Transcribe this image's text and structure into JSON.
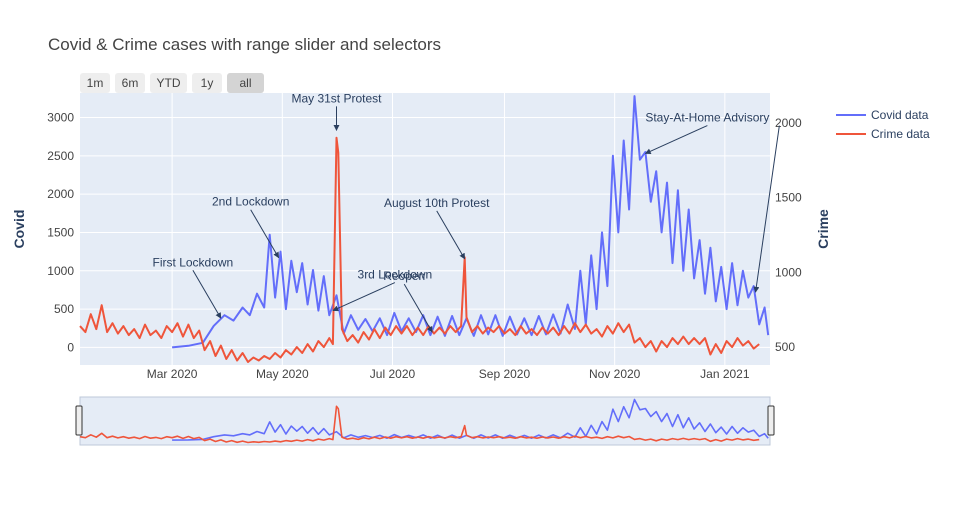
{
  "chart_data": {
    "type": "line",
    "title": "Covid & Crime cases with range slider and selectors",
    "range_selector": [
      {
        "label": "1m",
        "active": false
      },
      {
        "label": "6m",
        "active": false
      },
      {
        "label": "YTD",
        "active": false
      },
      {
        "label": "1y",
        "active": false
      },
      {
        "label": "all",
        "active": true
      }
    ],
    "x_range": [
      "2020-01-10",
      "2021-01-26"
    ],
    "x_ticks": [
      {
        "date": "2020-03-01",
        "label": "Mar 2020"
      },
      {
        "date": "2020-05-01",
        "label": "May 2020"
      },
      {
        "date": "2020-07-01",
        "label": "Jul 2020"
      },
      {
        "date": "2020-09-01",
        "label": "Sep 2020"
      },
      {
        "date": "2020-11-01",
        "label": "Nov 2020"
      },
      {
        "date": "2021-01-01",
        "label": "Jan 2021"
      }
    ],
    "y_left": {
      "title": "Covid",
      "range": [
        -230,
        3320
      ],
      "ticks": [
        0,
        500,
        1000,
        1500,
        2000,
        2500,
        3000
      ]
    },
    "y_right": {
      "title": "Crime",
      "range": [
        380,
        2200
      ],
      "ticks": [
        500,
        1000,
        1500,
        2000
      ]
    },
    "legend_position": "top-right",
    "grid": true,
    "range_slider": true,
    "series": [
      {
        "name": "Covid data",
        "axis": "left",
        "color": "#636efa",
        "points": [
          [
            "2020-03-01",
            0
          ],
          [
            "2020-03-10",
            20
          ],
          [
            "2020-03-18",
            60
          ],
          [
            "2020-03-24",
            280
          ],
          [
            "2020-03-30",
            420
          ],
          [
            "2020-04-04",
            350
          ],
          [
            "2020-04-09",
            520
          ],
          [
            "2020-04-13",
            420
          ],
          [
            "2020-04-17",
            700
          ],
          [
            "2020-04-21",
            520
          ],
          [
            "2020-04-24",
            1470
          ],
          [
            "2020-04-27",
            650
          ],
          [
            "2020-04-30",
            1250
          ],
          [
            "2020-05-03",
            500
          ],
          [
            "2020-05-06",
            1130
          ],
          [
            "2020-05-09",
            720
          ],
          [
            "2020-05-12",
            1100
          ],
          [
            "2020-05-15",
            560
          ],
          [
            "2020-05-18",
            1010
          ],
          [
            "2020-05-21",
            480
          ],
          [
            "2020-05-24",
            930
          ],
          [
            "2020-05-27",
            420
          ],
          [
            "2020-05-31",
            680
          ],
          [
            "2020-06-04",
            180
          ],
          [
            "2020-06-08",
            420
          ],
          [
            "2020-06-12",
            230
          ],
          [
            "2020-06-16",
            370
          ],
          [
            "2020-06-20",
            210
          ],
          [
            "2020-06-24",
            380
          ],
          [
            "2020-06-28",
            160
          ],
          [
            "2020-07-02",
            450
          ],
          [
            "2020-07-06",
            210
          ],
          [
            "2020-07-10",
            380
          ],
          [
            "2020-07-14",
            200
          ],
          [
            "2020-07-18",
            420
          ],
          [
            "2020-07-22",
            160
          ],
          [
            "2020-07-26",
            400
          ],
          [
            "2020-07-30",
            150
          ],
          [
            "2020-08-03",
            410
          ],
          [
            "2020-08-07",
            160
          ],
          [
            "2020-08-11",
            380
          ],
          [
            "2020-08-15",
            150
          ],
          [
            "2020-08-19",
            420
          ],
          [
            "2020-08-23",
            170
          ],
          [
            "2020-08-27",
            420
          ],
          [
            "2020-08-31",
            150
          ],
          [
            "2020-09-04",
            400
          ],
          [
            "2020-09-08",
            170
          ],
          [
            "2020-09-12",
            380
          ],
          [
            "2020-09-16",
            160
          ],
          [
            "2020-09-20",
            410
          ],
          [
            "2020-09-24",
            170
          ],
          [
            "2020-09-28",
            430
          ],
          [
            "2020-10-02",
            180
          ],
          [
            "2020-10-06",
            560
          ],
          [
            "2020-10-10",
            240
          ],
          [
            "2020-10-13",
            1000
          ],
          [
            "2020-10-16",
            300
          ],
          [
            "2020-10-19",
            1200
          ],
          [
            "2020-10-22",
            500
          ],
          [
            "2020-10-25",
            1500
          ],
          [
            "2020-10-28",
            800
          ],
          [
            "2020-10-31",
            2500
          ],
          [
            "2020-11-03",
            1500
          ],
          [
            "2020-11-06",
            2700
          ],
          [
            "2020-11-09",
            1800
          ],
          [
            "2020-11-12",
            3280
          ],
          [
            "2020-11-15",
            2450
          ],
          [
            "2020-11-18",
            2550
          ],
          [
            "2020-11-21",
            1900
          ],
          [
            "2020-11-24",
            2300
          ],
          [
            "2020-11-27",
            1500
          ],
          [
            "2020-11-30",
            2150
          ],
          [
            "2020-12-03",
            1100
          ],
          [
            "2020-12-06",
            2050
          ],
          [
            "2020-12-09",
            1000
          ],
          [
            "2020-12-12",
            1800
          ],
          [
            "2020-12-15",
            900
          ],
          [
            "2020-12-18",
            1400
          ],
          [
            "2020-12-21",
            700
          ],
          [
            "2020-12-24",
            1300
          ],
          [
            "2020-12-27",
            600
          ],
          [
            "2020-12-30",
            1050
          ],
          [
            "2021-01-02",
            500
          ],
          [
            "2021-01-05",
            1100
          ],
          [
            "2021-01-08",
            550
          ],
          [
            "2021-01-11",
            1000
          ],
          [
            "2021-01-14",
            650
          ],
          [
            "2021-01-17",
            800
          ],
          [
            "2021-01-20",
            300
          ],
          [
            "2021-01-23",
            520
          ],
          [
            "2021-01-25",
            160
          ]
        ]
      },
      {
        "name": "Crime data",
        "axis": "right",
        "color": "#ef553b",
        "points": [
          [
            "2020-01-10",
            640
          ],
          [
            "2020-01-13",
            600
          ],
          [
            "2020-01-16",
            720
          ],
          [
            "2020-01-19",
            620
          ],
          [
            "2020-01-22",
            780
          ],
          [
            "2020-01-25",
            600
          ],
          [
            "2020-01-28",
            660
          ],
          [
            "2020-01-31",
            590
          ],
          [
            "2020-02-03",
            640
          ],
          [
            "2020-02-06",
            580
          ],
          [
            "2020-02-09",
            620
          ],
          [
            "2020-02-12",
            560
          ],
          [
            "2020-02-15",
            650
          ],
          [
            "2020-02-18",
            580
          ],
          [
            "2020-02-21",
            610
          ],
          [
            "2020-02-24",
            560
          ],
          [
            "2020-02-27",
            640
          ],
          [
            "2020-03-01",
            600
          ],
          [
            "2020-03-04",
            660
          ],
          [
            "2020-03-07",
            570
          ],
          [
            "2020-03-10",
            650
          ],
          [
            "2020-03-13",
            560
          ],
          [
            "2020-03-16",
            610
          ],
          [
            "2020-03-19",
            480
          ],
          [
            "2020-03-22",
            540
          ],
          [
            "2020-03-25",
            440
          ],
          [
            "2020-03-28",
            510
          ],
          [
            "2020-03-31",
            420
          ],
          [
            "2020-04-03",
            480
          ],
          [
            "2020-04-06",
            410
          ],
          [
            "2020-04-09",
            460
          ],
          [
            "2020-04-12",
            400
          ],
          [
            "2020-04-15",
            430
          ],
          [
            "2020-04-18",
            410
          ],
          [
            "2020-04-21",
            440
          ],
          [
            "2020-04-24",
            420
          ],
          [
            "2020-04-27",
            460
          ],
          [
            "2020-04-30",
            430
          ],
          [
            "2020-05-03",
            480
          ],
          [
            "2020-05-06",
            450
          ],
          [
            "2020-05-09",
            500
          ],
          [
            "2020-05-12",
            460
          ],
          [
            "2020-05-15",
            520
          ],
          [
            "2020-05-18",
            470
          ],
          [
            "2020-05-21",
            540
          ],
          [
            "2020-05-24",
            500
          ],
          [
            "2020-05-27",
            560
          ],
          [
            "2020-05-29",
            520
          ],
          [
            "2020-05-31",
            1900
          ],
          [
            "2020-06-01",
            1800
          ],
          [
            "2020-06-03",
            620
          ],
          [
            "2020-06-06",
            540
          ],
          [
            "2020-06-09",
            580
          ],
          [
            "2020-06-12",
            530
          ],
          [
            "2020-06-15",
            600
          ],
          [
            "2020-06-18",
            550
          ],
          [
            "2020-06-21",
            620
          ],
          [
            "2020-06-24",
            560
          ],
          [
            "2020-06-27",
            630
          ],
          [
            "2020-06-30",
            580
          ],
          [
            "2020-07-03",
            640
          ],
          [
            "2020-07-06",
            590
          ],
          [
            "2020-07-09",
            640
          ],
          [
            "2020-07-12",
            580
          ],
          [
            "2020-07-15",
            630
          ],
          [
            "2020-07-18",
            580
          ],
          [
            "2020-07-21",
            640
          ],
          [
            "2020-07-24",
            590
          ],
          [
            "2020-07-27",
            630
          ],
          [
            "2020-07-30",
            590
          ],
          [
            "2020-08-02",
            640
          ],
          [
            "2020-08-05",
            600
          ],
          [
            "2020-08-08",
            640
          ],
          [
            "2020-08-10",
            1100
          ],
          [
            "2020-08-11",
            700
          ],
          [
            "2020-08-14",
            600
          ],
          [
            "2020-08-17",
            640
          ],
          [
            "2020-08-20",
            590
          ],
          [
            "2020-08-23",
            630
          ],
          [
            "2020-08-26",
            600
          ],
          [
            "2020-08-29",
            640
          ],
          [
            "2020-09-01",
            590
          ],
          [
            "2020-09-04",
            620
          ],
          [
            "2020-09-07",
            580
          ],
          [
            "2020-09-10",
            640
          ],
          [
            "2020-09-13",
            590
          ],
          [
            "2020-09-16",
            620
          ],
          [
            "2020-09-19",
            580
          ],
          [
            "2020-09-22",
            630
          ],
          [
            "2020-09-25",
            590
          ],
          [
            "2020-09-28",
            630
          ],
          [
            "2020-10-01",
            580
          ],
          [
            "2020-10-04",
            640
          ],
          [
            "2020-10-07",
            590
          ],
          [
            "2020-10-10",
            660
          ],
          [
            "2020-10-13",
            600
          ],
          [
            "2020-10-16",
            650
          ],
          [
            "2020-10-19",
            590
          ],
          [
            "2020-10-22",
            620
          ],
          [
            "2020-10-25",
            570
          ],
          [
            "2020-10-28",
            640
          ],
          [
            "2020-10-31",
            590
          ],
          [
            "2020-11-03",
            660
          ],
          [
            "2020-11-06",
            600
          ],
          [
            "2020-11-09",
            650
          ],
          [
            "2020-11-12",
            530
          ],
          [
            "2020-11-15",
            560
          ],
          [
            "2020-11-18",
            500
          ],
          [
            "2020-11-21",
            540
          ],
          [
            "2020-11-24",
            470
          ],
          [
            "2020-11-27",
            540
          ],
          [
            "2020-11-30",
            500
          ],
          [
            "2020-12-03",
            560
          ],
          [
            "2020-12-06",
            520
          ],
          [
            "2020-12-09",
            570
          ],
          [
            "2020-12-12",
            520
          ],
          [
            "2020-12-15",
            560
          ],
          [
            "2020-12-18",
            520
          ],
          [
            "2020-12-21",
            560
          ],
          [
            "2020-12-24",
            450
          ],
          [
            "2020-12-27",
            520
          ],
          [
            "2020-12-30",
            460
          ],
          [
            "2021-01-02",
            540
          ],
          [
            "2021-01-05",
            500
          ],
          [
            "2021-01-08",
            560
          ],
          [
            "2021-01-11",
            510
          ],
          [
            "2021-01-14",
            540
          ],
          [
            "2021-01-17",
            490
          ],
          [
            "2021-01-20",
            520
          ]
        ]
      }
    ],
    "annotations": [
      {
        "text": "First Lockdown",
        "x": "2020-03-28",
        "y": 380,
        "axis": "left",
        "label_pos": "above-left"
      },
      {
        "text": "2nd Lockdown",
        "x": "2020-04-29",
        "y": 1170,
        "axis": "left",
        "label_pos": "above-left"
      },
      {
        "text": "3rd Lockdown",
        "x": "2020-05-29",
        "y": 480,
        "axis": "left",
        "label_pos": "above-right"
      },
      {
        "text": "May 31st Protest",
        "x": "2020-05-31",
        "y": 1950,
        "axis": "right",
        "label_pos": "above"
      },
      {
        "text": "Reopen",
        "x": "2020-07-23",
        "y": 600,
        "axis": "right",
        "label_pos": "above-left"
      },
      {
        "text": "August 10th Protest",
        "x": "2020-08-10",
        "y": 1090,
        "axis": "right",
        "label_pos": "above-left"
      },
      {
        "text": "Stay-At-Home Advisory",
        "x": "2020-11-18",
        "y": 2530,
        "axis": "left",
        "label_pos": "above-right"
      },
      {
        "text": "Stay-At-Home Advisory",
        "x": "2021-01-18",
        "y": 720,
        "axis": "left",
        "label_pos": "shared-label"
      }
    ]
  }
}
